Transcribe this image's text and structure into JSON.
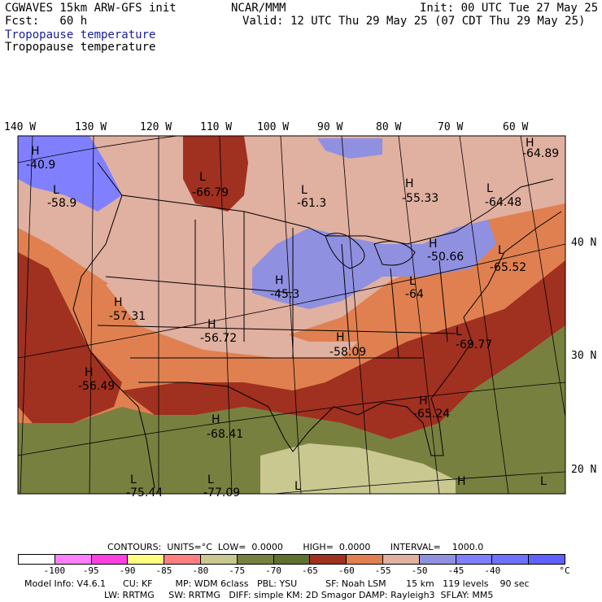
{
  "header": {
    "model": "CGWAVES 15km ARW-GFS init",
    "center": "NCAR/MMM",
    "init": "Init: 00 UTC Tue 27 May 25",
    "fcst": "Fcst:   60 h",
    "valid": "Valid: 12 UTC Thu 29 May 25 (07 CDT Thu 29 May 25)",
    "field_title_1": "Tropopause temperature",
    "field_title_2": "Tropopause temperature"
  },
  "map": {
    "lon_labels": [
      "140 W",
      "130 W",
      "120 W",
      "110 W",
      "100 W",
      "90 W",
      "80 W",
      "70 W",
      "60 W"
    ],
    "lat_labels": [
      "40 N",
      "30 N",
      "20 N"
    ],
    "extrema": [
      {
        "type": "H",
        "value": "-40.9"
      },
      {
        "type": "L",
        "value": "-58.9"
      },
      {
        "type": "L",
        "value": "-66.79"
      },
      {
        "type": "L",
        "value": "-61.3"
      },
      {
        "type": "H",
        "value": "-55.33"
      },
      {
        "type": "L",
        "value": "-64.48"
      },
      {
        "type": "H",
        "value": "-64.89"
      },
      {
        "type": "H",
        "value": "-50.66"
      },
      {
        "type": "L",
        "value": "-65.52"
      },
      {
        "type": "H",
        "value": "-45.3"
      },
      {
        "type": "H",
        "value": "-57.31"
      },
      {
        "type": "H",
        "value": "-56.72"
      },
      {
        "type": "H",
        "value": "-58.09"
      },
      {
        "type": "L",
        "value": "-69.77"
      },
      {
        "type": "L",
        "value": "-64"
      },
      {
        "type": "H",
        "value": "-56.49"
      },
      {
        "type": "H",
        "value": "-68.41"
      },
      {
        "type": "H",
        "value": "-65.24"
      },
      {
        "type": "L",
        "value": "-75.44"
      },
      {
        "type": "L",
        "value": "-77.09"
      },
      {
        "type": "L",
        "value": ""
      },
      {
        "type": "H",
        "value": ""
      },
      {
        "type": "L",
        "value": ""
      }
    ]
  },
  "legend": {
    "contours_line": "CONTOURS:  UNITS=°C  LOW=  0.0000       HIGH=  0.0000       INTERVAL=    1000.0",
    "colors": [
      "#ffffff",
      "#ff80ff",
      "#ff40e0",
      "#ffff80",
      "#ff8080",
      "#c8c890",
      "#788040",
      "#607030",
      "#a03020",
      "#e08050",
      "#e0b0a0",
      "#9090e0",
      "#8080ff",
      "#7070ff",
      "#6060ff"
    ],
    "labels": [
      "-100",
      "-95",
      "-90",
      "-85",
      "-80",
      "-75",
      "-70",
      "-65",
      "-60",
      "-55",
      "-50",
      "-45",
      "-40"
    ],
    "unit": "°C"
  },
  "footer": {
    "line1": "Model Info: V4.6.1      CU: KF        MP: WDM 6class   PBL: YSU          SF: Noah LSM       15 km   119 levels    90 sec",
    "line2": "LW: RRTMG     SW: RRTMG   DIFF: simple KM: 2D Smagor DAMP: Rayleigh3  SFLAY: MM5"
  }
}
